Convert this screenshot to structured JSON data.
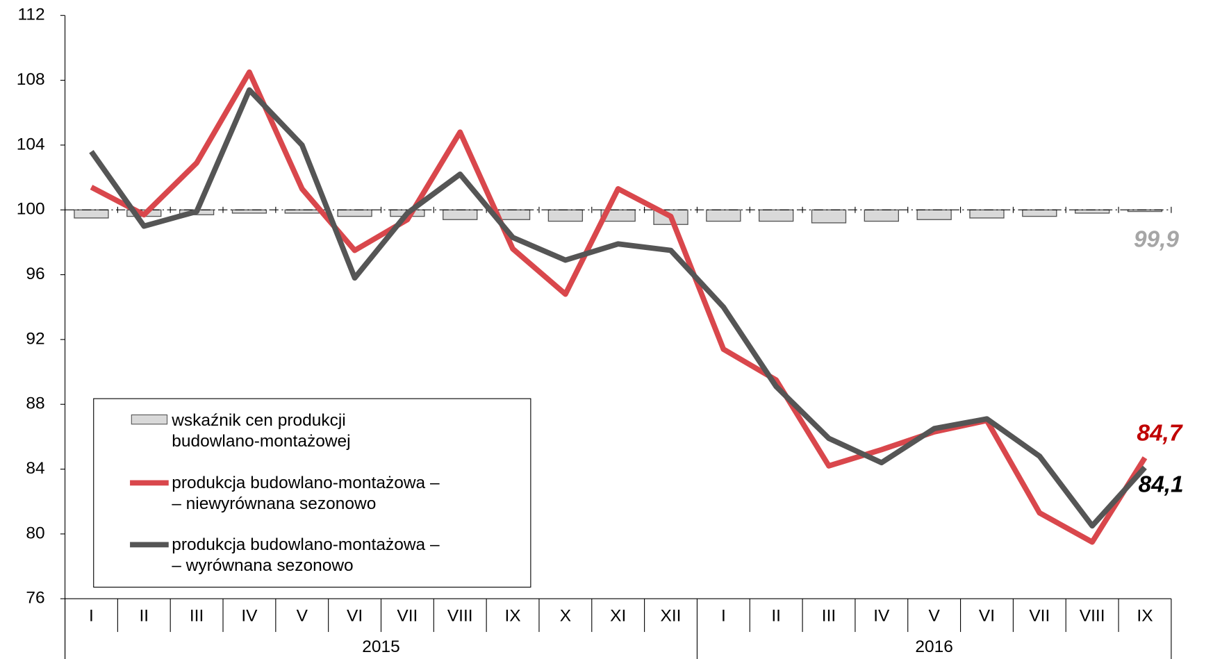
{
  "chart_data": {
    "type": "line_bar",
    "groups": [
      {
        "label": "2015",
        "categories": [
          "I",
          "II",
          "III",
          "IV",
          "V",
          "VI",
          "VII",
          "VIII",
          "IX",
          "X",
          "XI",
          "XII"
        ]
      },
      {
        "label": "2016",
        "categories": [
          "I",
          "II",
          "III",
          "IV",
          "V",
          "VI",
          "VII",
          "VIII",
          "IX"
        ]
      }
    ],
    "ylim": [
      76,
      112
    ],
    "yticks": [
      76,
      80,
      84,
      88,
      92,
      96,
      100,
      104,
      108,
      112
    ],
    "bar_base": 100,
    "series": [
      {
        "name": "wskaźnik cen produkcji\nbudowlano-montażowej",
        "kind": "bar",
        "color": "#d9d9d9",
        "values": [
          99.5,
          99.6,
          99.7,
          99.8,
          99.8,
          99.6,
          99.6,
          99.4,
          99.4,
          99.3,
          99.3,
          99.1,
          99.3,
          99.3,
          99.2,
          99.3,
          99.4,
          99.5,
          99.6,
          99.8,
          99.9
        ],
        "value_labels": [
          null,
          null,
          null,
          null,
          null,
          null,
          null,
          null,
          null,
          null,
          null,
          null,
          null,
          null,
          null,
          null,
          null,
          null,
          null,
          null,
          "99,9"
        ],
        "label_color": "#a6a6a6"
      },
      {
        "name": "produkcja budowlano-montażowa –\n– niewyrównana sezonowo",
        "kind": "line",
        "color": "#d9474c",
        "values": [
          101.4,
          99.7,
          102.9,
          108.5,
          101.3,
          97.5,
          99.4,
          104.8,
          97.6,
          94.8,
          101.3,
          99.6,
          91.4,
          89.5,
          84.2,
          85.2,
          86.3,
          87.0,
          81.3,
          79.5,
          84.7
        ],
        "value_labels": [
          null,
          null,
          null,
          null,
          null,
          null,
          null,
          null,
          null,
          null,
          null,
          null,
          null,
          null,
          null,
          null,
          null,
          null,
          null,
          null,
          "84,7"
        ],
        "label_color": "#c00000"
      },
      {
        "name": "produkcja budowlano-montażowa –\n– wyrównana sezonowo",
        "kind": "line",
        "color": "#555555",
        "values": [
          103.6,
          99.0,
          99.9,
          107.4,
          104.0,
          95.8,
          99.8,
          102.2,
          98.3,
          96.9,
          97.9,
          97.5,
          94.0,
          89.1,
          85.9,
          84.4,
          86.5,
          87.1,
          84.8,
          80.5,
          84.1
        ],
        "value_labels": [
          null,
          null,
          null,
          null,
          null,
          null,
          null,
          null,
          null,
          null,
          null,
          null,
          null,
          null,
          null,
          null,
          null,
          null,
          null,
          null,
          "84,1"
        ],
        "label_color": "#000000"
      }
    ]
  }
}
